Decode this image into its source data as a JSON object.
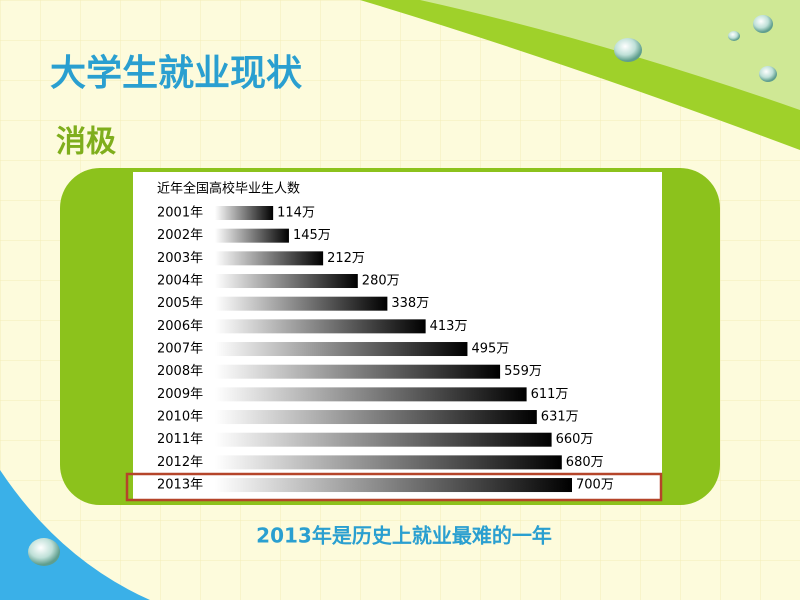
{
  "slide_title": "大学生就业现状",
  "subtitle": "消极",
  "caption": "2013年是历史上就业最难的一年",
  "chart_data": {
    "type": "bar",
    "orientation": "horizontal",
    "title": "近年全国高校毕业生人数",
    "categories": [
      "2001年",
      "2002年",
      "2003年",
      "2004年",
      "2005年",
      "2006年",
      "2007年",
      "2008年",
      "2009年",
      "2010年",
      "2011年",
      "2012年",
      "2013年"
    ],
    "values": [
      114,
      145,
      212,
      280,
      338,
      413,
      495,
      559,
      611,
      631,
      660,
      680,
      700
    ],
    "value_labels": [
      "114万",
      "145万",
      "212万",
      "280万",
      "338万",
      "413万",
      "495万",
      "559万",
      "611万",
      "631万",
      "660万",
      "680万",
      "700万"
    ],
    "color": "#000000"
  }
}
